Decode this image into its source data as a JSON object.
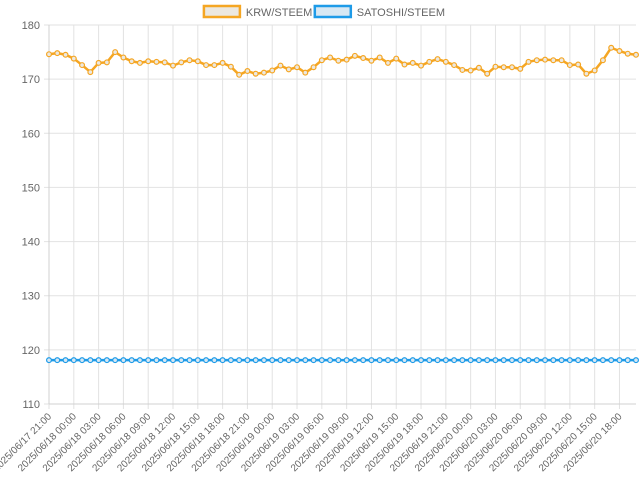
{
  "chart_data": {
    "type": "line",
    "title": "",
    "xlabel": "",
    "ylabel": "",
    "ylim": [
      110,
      180
    ],
    "yticks": [
      110,
      120,
      130,
      140,
      150,
      160,
      170,
      180
    ],
    "grid": true,
    "legend_position": "top-center",
    "x": [
      "2025/06/17 21:00",
      "2025/06/17 22:00",
      "2025/06/17 23:00",
      "2025/06/18 00:00",
      "2025/06/18 01:00",
      "2025/06/18 02:00",
      "2025/06/18 03:00",
      "2025/06/18 04:00",
      "2025/06/18 05:00",
      "2025/06/18 06:00",
      "2025/06/18 07:00",
      "2025/06/18 08:00",
      "2025/06/18 09:00",
      "2025/06/18 10:00",
      "2025/06/18 11:00",
      "2025/06/18 12:00",
      "2025/06/18 13:00",
      "2025/06/18 14:00",
      "2025/06/18 15:00",
      "2025/06/18 16:00",
      "2025/06/18 17:00",
      "2025/06/18 18:00",
      "2025/06/18 19:00",
      "2025/06/18 20:00",
      "2025/06/18 21:00",
      "2025/06/18 22:00",
      "2025/06/18 23:00",
      "2025/06/19 00:00",
      "2025/06/19 01:00",
      "2025/06/19 02:00",
      "2025/06/19 03:00",
      "2025/06/19 04:00",
      "2025/06/19 05:00",
      "2025/06/19 06:00",
      "2025/06/19 07:00",
      "2025/06/19 08:00",
      "2025/06/19 09:00",
      "2025/06/19 10:00",
      "2025/06/19 11:00",
      "2025/06/19 12:00",
      "2025/06/19 13:00",
      "2025/06/19 14:00",
      "2025/06/19 15:00",
      "2025/06/19 16:00",
      "2025/06/19 17:00",
      "2025/06/19 18:00",
      "2025/06/19 19:00",
      "2025/06/19 20:00",
      "2025/06/19 21:00",
      "2025/06/19 22:00",
      "2025/06/19 23:00",
      "2025/06/20 00:00",
      "2025/06/20 01:00",
      "2025/06/20 02:00",
      "2025/06/20 03:00",
      "2025/06/20 04:00",
      "2025/06/20 05:00",
      "2025/06/20 06:00",
      "2025/06/20 07:00",
      "2025/06/20 08:00",
      "2025/06/20 09:00",
      "2025/06/20 10:00",
      "2025/06/20 11:00",
      "2025/06/20 12:00",
      "2025/06/20 13:00",
      "2025/06/20 14:00",
      "2025/06/20 15:00",
      "2025/06/20 16:00",
      "2025/06/20 17:00",
      "2025/06/20 18:00",
      "2025/06/20 19:00",
      "2025/06/20 20:00"
    ],
    "x_tick_every": 3,
    "series": [
      {
        "name": "KRW/STEEM",
        "color": "#f5a623",
        "fill": "#ece8e0",
        "values": [
          174.6,
          174.8,
          174.5,
          173.8,
          172.6,
          171.3,
          173.0,
          173.1,
          175.0,
          174.0,
          173.3,
          173.0,
          173.3,
          173.2,
          173.1,
          172.5,
          173.1,
          173.5,
          173.3,
          172.6,
          172.6,
          173.0,
          172.3,
          170.8,
          171.5,
          171.0,
          171.2,
          171.6,
          172.5,
          171.8,
          172.2,
          171.2,
          172.2,
          173.5,
          174.0,
          173.4,
          173.6,
          174.3,
          173.9,
          173.4,
          174.0,
          173.0,
          173.8,
          172.7,
          173.0,
          172.5,
          173.2,
          173.7,
          173.2,
          172.6,
          171.7,
          171.6,
          172.1,
          171.0,
          172.3,
          172.2,
          172.2,
          171.9,
          173.2,
          173.5,
          173.6,
          173.5,
          173.5,
          172.6,
          172.7,
          171.0,
          171.6,
          173.5,
          175.8,
          175.2,
          174.7,
          174.5
        ]
      },
      {
        "name": "SATOSHI/STEEM",
        "color": "#1e9be8",
        "fill": "#d8e8f3",
        "values": [
          118.1,
          118.1,
          118.1,
          118.1,
          118.1,
          118.1,
          118.1,
          118.1,
          118.1,
          118.1,
          118.1,
          118.1,
          118.1,
          118.1,
          118.1,
          118.1,
          118.1,
          118.1,
          118.1,
          118.1,
          118.1,
          118.1,
          118.1,
          118.1,
          118.1,
          118.1,
          118.1,
          118.1,
          118.1,
          118.1,
          118.1,
          118.1,
          118.1,
          118.1,
          118.1,
          118.1,
          118.1,
          118.1,
          118.1,
          118.1,
          118.1,
          118.1,
          118.1,
          118.1,
          118.1,
          118.1,
          118.1,
          118.1,
          118.1,
          118.1,
          118.1,
          118.1,
          118.1,
          118.1,
          118.1,
          118.1,
          118.1,
          118.1,
          118.1,
          118.1,
          118.1,
          118.1,
          118.1,
          118.1,
          118.1,
          118.1,
          118.1,
          118.1,
          118.1,
          118.1,
          118.1,
          118.1
        ]
      }
    ]
  }
}
